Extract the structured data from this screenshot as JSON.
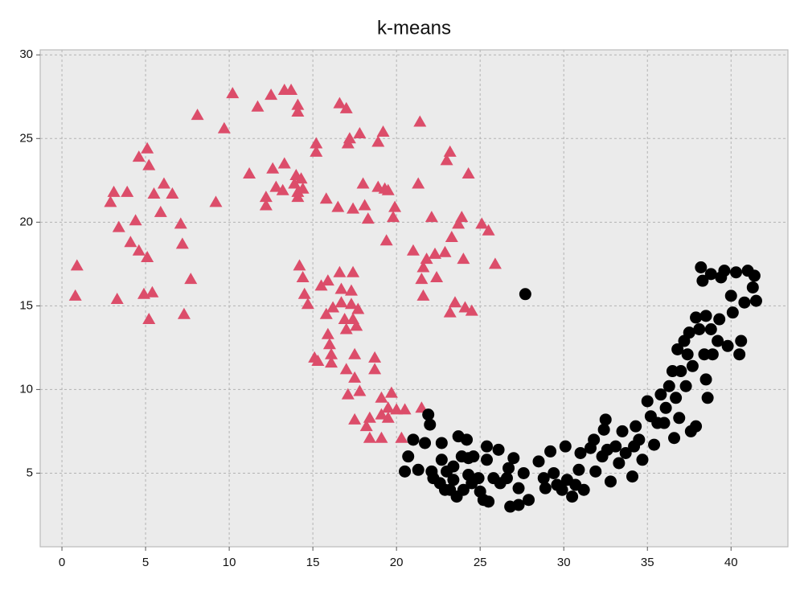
{
  "chart_data": {
    "type": "scatter",
    "title": "k-means",
    "xlim": [
      -1.3,
      43.4
    ],
    "ylim": [
      0.6,
      30.3
    ],
    "xticks": [
      0,
      5,
      10,
      15,
      20,
      25,
      30,
      35,
      40
    ],
    "yticks": [
      5,
      10,
      15,
      20,
      25,
      30
    ],
    "grid": true,
    "series": [
      {
        "color": "#dc4d6a",
        "marker": "triangle",
        "x": [
          0.9,
          0.8,
          3.3,
          3.1,
          2.9,
          3.4,
          3.9,
          4.1,
          4.4,
          4.6,
          4.6,
          5.1,
          5.2,
          5.1,
          4.9,
          5.4,
          5.2,
          5.5,
          5.9,
          6.1,
          6.6,
          7.1,
          7.2,
          7.3,
          7.7,
          8.1,
          9.2,
          9.7,
          10.2,
          11.2,
          11.7,
          12.2,
          12.2,
          12.5,
          12.6,
          12.8,
          13.2,
          13.3,
          13.3,
          13.7,
          13.9,
          14.1,
          14.1,
          14.0,
          14.1,
          14.3,
          14.4,
          14.1,
          14.2,
          14.4,
          14.5,
          14.7,
          15.2,
          15.2,
          15.1,
          15.3,
          15.5,
          15.8,
          15.9,
          15.8,
          15.9,
          16.0,
          16.1,
          16.1,
          16.2,
          16.5,
          16.6,
          16.7,
          16.6,
          16.7,
          16.9,
          17.0,
          17.0,
          17.0,
          17.1,
          17.1,
          17.2,
          17.4,
          17.4,
          17.3,
          17.3,
          17.4,
          17.5,
          17.5,
          17.5,
          17.6,
          17.7,
          17.8,
          17.8,
          18.0,
          18.1,
          18.2,
          18.3,
          18.4,
          18.4,
          18.7,
          18.7,
          18.9,
          18.9,
          19.1,
          19.1,
          19.1,
          19.2,
          19.3,
          19.4,
          19.5,
          19.5,
          19.5,
          19.7,
          19.8,
          19.9,
          20.0,
          20.3,
          20.5,
          21.0,
          21.3,
          21.4,
          21.5,
          21.6,
          21.6,
          21.5,
          21.8,
          22.1,
          22.3,
          22.4,
          22.9,
          23.0,
          23.2,
          23.3,
          23.2,
          23.5,
          23.7,
          23.9,
          24.0,
          24.1,
          24.3,
          24.5,
          25.1,
          25.5,
          25.9
        ],
        "values": [
          17.4,
          15.6,
          15.4,
          21.8,
          21.2,
          19.7,
          21.8,
          18.8,
          20.1,
          23.9,
          18.3,
          24.4,
          23.4,
          17.9,
          15.7,
          15.8,
          14.2,
          21.7,
          20.6,
          22.3,
          21.7,
          19.9,
          18.7,
          14.5,
          16.6,
          26.4,
          21.2,
          25.6,
          27.7,
          22.9,
          26.9,
          21.5,
          21.0,
          27.6,
          23.2,
          22.1,
          21.9,
          27.9,
          23.5,
          27.9,
          22.3,
          27.0,
          26.6,
          22.8,
          21.8,
          22.6,
          22.0,
          21.5,
          17.4,
          16.7,
          15.7,
          15.1,
          24.7,
          24.2,
          11.9,
          11.7,
          16.2,
          21.4,
          16.5,
          14.5,
          13.3,
          12.7,
          12.1,
          11.6,
          14.9,
          20.9,
          27.1,
          16.0,
          17.0,
          15.2,
          14.2,
          26.8,
          13.6,
          11.2,
          9.7,
          24.7,
          25.0,
          20.8,
          17.0,
          15.9,
          15.1,
          14.2,
          12.1,
          10.7,
          8.2,
          13.8,
          14.8,
          25.3,
          9.9,
          22.3,
          21.0,
          7.8,
          20.2,
          8.3,
          7.1,
          11.9,
          11.2,
          24.8,
          22.1,
          9.5,
          8.5,
          7.1,
          25.4,
          22.0,
          18.9,
          21.9,
          8.9,
          8.3,
          9.8,
          20.3,
          20.9,
          8.8,
          7.1,
          8.8,
          18.3,
          22.3,
          26.0,
          16.6,
          17.3,
          15.6,
          8.9,
          17.8,
          20.3,
          18.1,
          16.7,
          18.2,
          23.7,
          24.2,
          19.1,
          14.6,
          15.2,
          19.9,
          20.3,
          17.8,
          14.9,
          22.9,
          14.7,
          19.9,
          19.5,
          17.5
        ]
      },
      {
        "color": "#000000",
        "marker": "circle",
        "x": [
          27.7,
          20.5,
          20.7,
          21.0,
          21.3,
          21.9,
          22.0,
          21.7,
          22.1,
          22.2,
          22.7,
          22.7,
          22.6,
          22.9,
          23.0,
          23.2,
          23.4,
          23.4,
          23.6,
          23.7,
          23.9,
          24.0,
          24.2,
          24.3,
          24.3,
          24.5,
          24.6,
          24.9,
          25.0,
          25.2,
          25.4,
          25.4,
          25.5,
          25.8,
          26.1,
          26.2,
          26.6,
          26.7,
          26.8,
          27.0,
          27.3,
          27.3,
          27.6,
          27.9,
          28.5,
          28.8,
          28.9,
          29.2,
          29.4,
          29.6,
          29.9,
          30.1,
          30.2,
          30.5,
          30.7,
          30.9,
          31.0,
          31.2,
          31.6,
          31.8,
          31.9,
          32.3,
          32.4,
          32.5,
          32.6,
          32.8,
          33.1,
          33.3,
          33.5,
          33.7,
          34.1,
          34.2,
          34.3,
          34.5,
          34.7,
          35.0,
          35.2,
          35.4,
          35.6,
          35.8,
          36.0,
          36.1,
          36.3,
          36.5,
          36.6,
          36.7,
          36.8,
          36.9,
          37.0,
          37.2,
          37.3,
          37.4,
          37.5,
          37.6,
          37.7,
          37.9,
          37.9,
          38.1,
          38.2,
          38.3,
          38.4,
          38.5,
          38.5,
          38.6,
          38.8,
          38.8,
          38.9,
          39.2,
          39.3,
          39.4,
          39.6,
          39.8,
          40.0,
          40.1,
          40.3,
          40.5,
          40.6,
          40.8,
          41.0,
          41.3,
          41.4,
          41.5
        ],
        "values": [
          15.7,
          5.1,
          6.0,
          7.0,
          5.2,
          8.5,
          7.9,
          6.8,
          5.1,
          4.7,
          6.8,
          5.8,
          4.4,
          4.0,
          5.1,
          4.0,
          5.4,
          4.6,
          3.6,
          7.2,
          6.0,
          4.0,
          7.0,
          5.9,
          4.9,
          4.4,
          6.0,
          4.7,
          3.9,
          3.4,
          6.6,
          5.8,
          3.3,
          4.7,
          6.4,
          4.4,
          4.7,
          5.3,
          3.0,
          5.9,
          3.1,
          4.1,
          5.0,
          3.4,
          5.7,
          4.7,
          4.1,
          6.3,
          5.0,
          4.3,
          4.0,
          6.6,
          4.6,
          3.6,
          4.3,
          5.2,
          6.2,
          4.0,
          6.5,
          7.0,
          5.1,
          6.0,
          7.6,
          8.2,
          6.4,
          4.5,
          6.6,
          5.6,
          7.5,
          6.2,
          4.8,
          6.6,
          7.8,
          7.0,
          5.8,
          9.3,
          8.4,
          6.7,
          8.0,
          9.7,
          8.0,
          8.9,
          10.2,
          11.1,
          7.1,
          9.5,
          12.4,
          8.3,
          11.1,
          12.9,
          10.2,
          12.1,
          13.4,
          7.5,
          11.4,
          7.8,
          14.3,
          13.6,
          17.3,
          16.5,
          12.1,
          10.6,
          14.4,
          9.5,
          13.6,
          16.9,
          12.1,
          12.9,
          14.2,
          16.7,
          17.1,
          12.6,
          15.6,
          14.6,
          17.0,
          12.1,
          12.9,
          15.2,
          17.1,
          16.1,
          16.8,
          15.3
        ]
      }
    ]
  }
}
